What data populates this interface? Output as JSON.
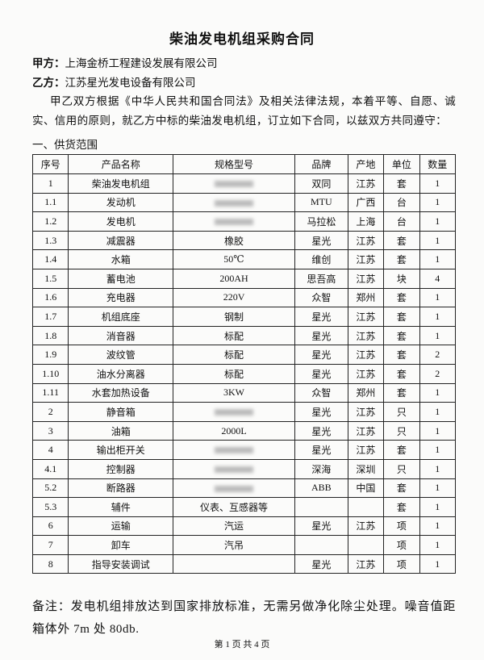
{
  "header": {
    "title": "柴油发电机组采购合同"
  },
  "parties": [
    {
      "label": "甲方：",
      "name": "上海金桥工程建设发展有限公司"
    },
    {
      "label": "乙方：",
      "name": "江苏星光发电设备有限公司"
    }
  ],
  "intro": "甲乙双方根据《中华人民共和国合同法》及相关法律法规，本着平等、自愿、诚实、信用的原则，就乙方中标的柴油发电机组，订立如下合同，以兹双方共同遵守：",
  "section": "一、供货范围",
  "table": {
    "columns": [
      "序号",
      "产品名称",
      "规格型号",
      "品牌",
      "产地",
      "单位",
      "数量"
    ],
    "rows": [
      [
        "1",
        "柴油发电机组",
        null,
        "双同",
        "江苏",
        "套",
        "1"
      ],
      [
        "1.1",
        "发动机",
        null,
        "MTU",
        "广西",
        "台",
        "1"
      ],
      [
        "1.2",
        "发电机",
        null,
        "马拉松",
        "上海",
        "台",
        "1"
      ],
      [
        "1.3",
        "减震器",
        "橡胶",
        "星光",
        "江苏",
        "套",
        "1"
      ],
      [
        "1.4",
        "水箱",
        "50℃",
        "维创",
        "江苏",
        "套",
        "1"
      ],
      [
        "1.5",
        "蓄电池",
        "200AH",
        "思吾高",
        "江苏",
        "块",
        "4"
      ],
      [
        "1.6",
        "充电器",
        "220V",
        "众智",
        "郑州",
        "套",
        "1"
      ],
      [
        "1.7",
        "机组底座",
        "钢制",
        "星光",
        "江苏",
        "套",
        "1"
      ],
      [
        "1.8",
        "消音器",
        "标配",
        "星光",
        "江苏",
        "套",
        "1"
      ],
      [
        "1.9",
        "波纹管",
        "标配",
        "星光",
        "江苏",
        "套",
        "2"
      ],
      [
        "1.10",
        "油水分离器",
        "标配",
        "星光",
        "江苏",
        "套",
        "2"
      ],
      [
        "1.11",
        "水套加热设备",
        "3KW",
        "众智",
        "郑州",
        "套",
        "1"
      ],
      [
        "2",
        "静音箱",
        null,
        "星光",
        "江苏",
        "只",
        "1"
      ],
      [
        "3",
        "油箱",
        "2000L",
        "星光",
        "江苏",
        "只",
        "1"
      ],
      [
        "4",
        "输出柜开关",
        null,
        "星光",
        "江苏",
        "套",
        "1"
      ],
      [
        "4.1",
        "控制器",
        null,
        "深海",
        "深圳",
        "只",
        "1"
      ],
      [
        "5.2",
        "断路器",
        null,
        "ABB",
        "中国",
        "套",
        "1"
      ],
      [
        "5.3",
        "辅件",
        "仪表、互感器等",
        null,
        null,
        "套",
        "1"
      ],
      [
        "6",
        "运输",
        "汽运",
        "星光",
        "江苏",
        "项",
        "1"
      ],
      [
        "7",
        "卸车",
        "汽吊",
        null,
        null,
        "项",
        "1"
      ],
      [
        "8",
        "指导安装调试",
        null,
        "星光",
        "江苏",
        "项",
        "1"
      ]
    ]
  },
  "redacted_cells": [
    [
      0,
      2
    ],
    [
      1,
      2
    ],
    [
      2,
      2
    ],
    [
      12,
      2
    ],
    [
      14,
      2
    ],
    [
      15,
      2
    ],
    [
      16,
      2
    ]
  ],
  "note": "备注：发电机组排放达到国家排放标准，无需另做净化除尘处理。噪音值距箱体外 7m 处 80db.",
  "footer": "第 1 页 共 4 页"
}
